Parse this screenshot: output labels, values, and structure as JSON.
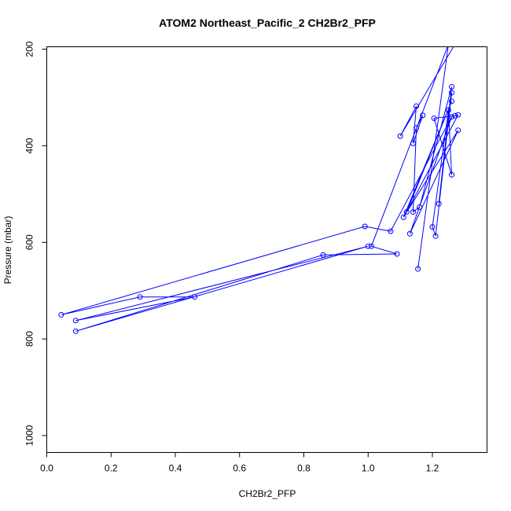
{
  "chart_data": {
    "type": "line",
    "title": "ATOM2 Northeast_Pacific_2 CH2Br2_PFP",
    "xlabel": "CH2Br2_PFP",
    "ylabel": "Pressure (mbar)",
    "xlim": [
      0.0,
      1.37
    ],
    "ylim": [
      1035,
      195
    ],
    "y_reversed": true,
    "x_ticks": [
      "0.0",
      "0.2",
      "0.4",
      "0.6",
      "0.8",
      "1.0",
      "1.2"
    ],
    "y_ticks": [
      "200",
      "400",
      "600",
      "800",
      "1000"
    ],
    "grid": false,
    "legend": "none",
    "series_color": "#0000ff",
    "series": [
      {
        "points": [
          {
            "x": 1.27,
            "y": 190
          },
          {
            "x": 1.1,
            "y": 380
          },
          {
            "x": 1.15,
            "y": 318
          },
          {
            "x": 1.14,
            "y": 395
          },
          {
            "x": 1.17,
            "y": 337
          },
          {
            "x": 1.15,
            "y": 363
          },
          {
            "x": 1.14,
            "y": 537
          },
          {
            "x": 1.16,
            "y": 527
          },
          {
            "x": 1.26,
            "y": 278
          },
          {
            "x": 1.22,
            "y": 520
          },
          {
            "x": 1.26,
            "y": 290
          },
          {
            "x": 1.21,
            "y": 587
          },
          {
            "x": 1.2,
            "y": 568
          },
          {
            "x": 1.25,
            "y": 326
          },
          {
            "x": 1.26,
            "y": 460
          },
          {
            "x": 1.205,
            "y": 343
          },
          {
            "x": 1.27,
            "y": 338
          },
          {
            "x": 1.28,
            "y": 336
          },
          {
            "x": 1.12,
            "y": 537
          },
          {
            "x": 1.26,
            "y": 308
          },
          {
            "x": 1.11,
            "y": 548
          },
          {
            "x": 1.28,
            "y": 368
          },
          {
            "x": 1.13,
            "y": 582
          },
          {
            "x": 1.26,
            "y": 340
          },
          {
            "x": 1.07,
            "y": 577
          },
          {
            "x": 0.99,
            "y": 567
          },
          {
            "x": 0.045,
            "y": 750
          },
          {
            "x": 0.29,
            "y": 713
          },
          {
            "x": 0.46,
            "y": 713
          },
          {
            "x": 0.09,
            "y": 762
          },
          {
            "x": 1.0,
            "y": 608
          },
          {
            "x": 0.09,
            "y": 784
          },
          {
            "x": 0.86,
            "y": 626
          },
          {
            "x": 1.09,
            "y": 624
          },
          {
            "x": 1.01,
            "y": 608
          },
          {
            "x": 1.25,
            "y": 190
          },
          {
            "x": 1.155,
            "y": 655
          },
          {
            "x": 1.25,
            "y": 190
          }
        ]
      }
    ]
  }
}
